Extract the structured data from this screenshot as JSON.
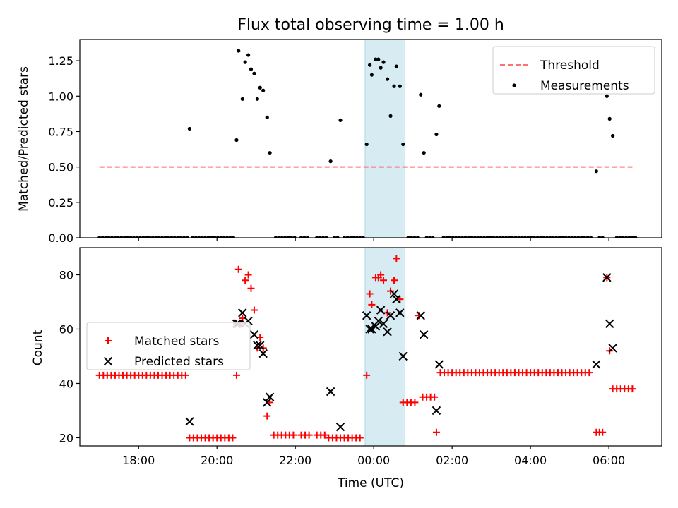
{
  "figure": {
    "title": "Flux total observing time = 1.00 h",
    "xlabel": "Time (UTC)"
  },
  "chart_data": [
    {
      "type": "scatter",
      "ylabel": "Matched/Predicted stars",
      "ylim": [
        0,
        1.4
      ],
      "yticks": [
        "0.00",
        "0.25",
        "0.50",
        "0.75",
        "1.00",
        "1.25"
      ],
      "xticks": [
        "18:00",
        "20:00",
        "22:00",
        "00:00",
        "02:00",
        "04:00",
        "06:00"
      ],
      "xlim_hours": [
        16.5,
        31.35
      ],
      "shaded_x_hours": [
        23.78,
        24.8
      ],
      "legend_position": "top-right",
      "series": [
        {
          "name": "Threshold",
          "kind": "line",
          "color": "#ff7070",
          "x_hours": [
            17.0,
            30.6
          ],
          "y": [
            0.5,
            0.5
          ]
        },
        {
          "name": "Measurements",
          "kind": "scatter",
          "color": "#000000",
          "points": [
            [
              19.3,
              0.77
            ],
            [
              20.5,
              0.69
            ],
            [
              20.55,
              1.32
            ],
            [
              20.65,
              0.98
            ],
            [
              20.72,
              1.24
            ],
            [
              20.8,
              1.29
            ],
            [
              20.87,
              1.19
            ],
            [
              20.95,
              1.16
            ],
            [
              21.03,
              0.98
            ],
            [
              21.1,
              1.06
            ],
            [
              21.18,
              1.04
            ],
            [
              21.28,
              0.85
            ],
            [
              21.35,
              0.6
            ],
            [
              22.9,
              0.54
            ],
            [
              23.15,
              0.83
            ],
            [
              23.82,
              0.66
            ],
            [
              23.9,
              1.22
            ],
            [
              23.95,
              1.15
            ],
            [
              24.05,
              1.26
            ],
            [
              24.12,
              1.26
            ],
            [
              24.18,
              1.2
            ],
            [
              24.25,
              1.24
            ],
            [
              24.35,
              1.12
            ],
            [
              24.43,
              0.86
            ],
            [
              24.52,
              1.07
            ],
            [
              24.58,
              1.21
            ],
            [
              24.67,
              1.07
            ],
            [
              24.75,
              0.66
            ],
            [
              25.2,
              1.01
            ],
            [
              25.28,
              0.6
            ],
            [
              25.6,
              0.73
            ],
            [
              25.67,
              0.93
            ],
            [
              29.68,
              0.47
            ],
            [
              29.95,
              1.0
            ],
            [
              30.02,
              0.84
            ],
            [
              30.1,
              0.72
            ]
          ],
          "zero_points_x_hours": [
            17.0,
            17.08,
            17.16,
            17.24,
            17.32,
            17.4,
            17.48,
            17.56,
            17.64,
            17.72,
            17.8,
            17.88,
            17.96,
            18.04,
            18.12,
            18.2,
            18.28,
            18.36,
            18.44,
            18.52,
            18.6,
            18.68,
            18.76,
            18.84,
            18.92,
            19.0,
            19.08,
            19.16,
            19.24,
            19.38,
            19.46,
            19.54,
            19.62,
            19.7,
            19.78,
            19.86,
            19.94,
            20.02,
            20.1,
            20.18,
            20.26,
            20.34,
            20.42,
            21.5,
            21.58,
            21.66,
            21.74,
            21.82,
            21.9,
            21.98,
            22.15,
            22.23,
            22.31,
            22.55,
            22.63,
            22.71,
            22.79,
            23.0,
            23.08,
            23.25,
            23.33,
            23.41,
            23.49,
            23.57,
            23.65,
            23.73,
            24.88,
            24.96,
            25.04,
            25.12,
            25.35,
            25.43,
            25.51,
            25.78,
            25.86,
            25.94,
            26.02,
            26.1,
            26.18,
            26.26,
            26.34,
            26.42,
            26.5,
            26.58,
            26.66,
            26.74,
            26.82,
            26.9,
            26.98,
            27.06,
            27.14,
            27.22,
            27.3,
            27.38,
            27.46,
            27.54,
            27.62,
            27.7,
            27.78,
            27.86,
            27.94,
            28.02,
            28.1,
            28.18,
            28.26,
            28.34,
            28.42,
            28.5,
            28.58,
            28.66,
            28.74,
            28.82,
            28.9,
            28.98,
            29.06,
            29.14,
            29.22,
            29.3,
            29.38,
            29.46,
            29.54,
            29.76,
            29.84,
            30.2,
            30.28,
            30.36,
            30.44,
            30.52,
            30.6,
            30.68
          ]
        }
      ]
    },
    {
      "type": "scatter",
      "ylabel": "Count",
      "ylim": [
        17,
        90
      ],
      "yticks": [
        "20",
        "40",
        "60",
        "80"
      ],
      "xticks": [
        "18:00",
        "20:00",
        "22:00",
        "00:00",
        "02:00",
        "04:00",
        "06:00"
      ],
      "xlim_hours": [
        16.5,
        31.35
      ],
      "shaded_x_hours": [
        23.78,
        24.8
      ],
      "legend_position": "center-left",
      "series": [
        {
          "name": "Matched stars",
          "kind": "plus",
          "color": "#ff0000",
          "points": [
            [
              17.0,
              43
            ],
            [
              17.1,
              43
            ],
            [
              17.2,
              43
            ],
            [
              17.3,
              43
            ],
            [
              17.4,
              43
            ],
            [
              17.5,
              43
            ],
            [
              17.6,
              43
            ],
            [
              17.7,
              43
            ],
            [
              17.8,
              43
            ],
            [
              17.9,
              43
            ],
            [
              18.0,
              43
            ],
            [
              18.1,
              43
            ],
            [
              18.2,
              43
            ],
            [
              18.3,
              43
            ],
            [
              18.4,
              43
            ],
            [
              18.5,
              43
            ],
            [
              18.6,
              43
            ],
            [
              18.7,
              43
            ],
            [
              18.8,
              43
            ],
            [
              18.9,
              43
            ],
            [
              19.0,
              43
            ],
            [
              19.1,
              43
            ],
            [
              19.2,
              43
            ],
            [
              19.3,
              20
            ],
            [
              19.4,
              20
            ],
            [
              19.5,
              20
            ],
            [
              19.6,
              20
            ],
            [
              19.7,
              20
            ],
            [
              19.8,
              20
            ],
            [
              19.9,
              20
            ],
            [
              20.0,
              20
            ],
            [
              20.1,
              20
            ],
            [
              20.2,
              20
            ],
            [
              20.3,
              20
            ],
            [
              20.4,
              20
            ],
            [
              20.5,
              43
            ],
            [
              20.5,
              62
            ],
            [
              20.55,
              82
            ],
            [
              20.6,
              62
            ],
            [
              20.65,
              64
            ],
            [
              20.72,
              78
            ],
            [
              20.8,
              80
            ],
            [
              20.87,
              75
            ],
            [
              20.95,
              67
            ],
            [
              21.03,
              53
            ],
            [
              21.1,
              57
            ],
            [
              21.18,
              53
            ],
            [
              21.28,
              28
            ],
            [
              21.35,
              33
            ],
            [
              21.45,
              21
            ],
            [
              21.55,
              21
            ],
            [
              21.65,
              21
            ],
            [
              21.75,
              21
            ],
            [
              21.85,
              21
            ],
            [
              21.95,
              21
            ],
            [
              22.15,
              21
            ],
            [
              22.25,
              21
            ],
            [
              22.35,
              21
            ],
            [
              22.55,
              21
            ],
            [
              22.65,
              21
            ],
            [
              22.75,
              21
            ],
            [
              22.85,
              20
            ],
            [
              22.95,
              20
            ],
            [
              23.05,
              20
            ],
            [
              23.15,
              20
            ],
            [
              23.25,
              20
            ],
            [
              23.35,
              20
            ],
            [
              23.45,
              20
            ],
            [
              23.55,
              20
            ],
            [
              23.65,
              20
            ],
            [
              23.82,
              43
            ],
            [
              23.9,
              73
            ],
            [
              23.95,
              69
            ],
            [
              24.05,
              79
            ],
            [
              24.12,
              79
            ],
            [
              24.18,
              80
            ],
            [
              24.25,
              78
            ],
            [
              24.35,
              66
            ],
            [
              24.43,
              74
            ],
            [
              24.52,
              78
            ],
            [
              24.58,
              86
            ],
            [
              24.67,
              71
            ],
            [
              24.75,
              33
            ],
            [
              24.85,
              33
            ],
            [
              24.95,
              33
            ],
            [
              25.05,
              33
            ],
            [
              25.15,
              65
            ],
            [
              25.25,
              35
            ],
            [
              25.35,
              35
            ],
            [
              25.45,
              35
            ],
            [
              25.55,
              35
            ],
            [
              25.6,
              22
            ],
            [
              25.7,
              44
            ],
            [
              25.8,
              44
            ],
            [
              25.9,
              44
            ],
            [
              26.0,
              44
            ],
            [
              26.1,
              44
            ],
            [
              26.2,
              44
            ],
            [
              26.3,
              44
            ],
            [
              26.4,
              44
            ],
            [
              26.5,
              44
            ],
            [
              26.6,
              44
            ],
            [
              26.7,
              44
            ],
            [
              26.8,
              44
            ],
            [
              26.9,
              44
            ],
            [
              27.0,
              44
            ],
            [
              27.1,
              44
            ],
            [
              27.2,
              44
            ],
            [
              27.3,
              44
            ],
            [
              27.4,
              44
            ],
            [
              27.5,
              44
            ],
            [
              27.6,
              44
            ],
            [
              27.7,
              44
            ],
            [
              27.8,
              44
            ],
            [
              27.9,
              44
            ],
            [
              28.0,
              44
            ],
            [
              28.1,
              44
            ],
            [
              28.2,
              44
            ],
            [
              28.3,
              44
            ],
            [
              28.4,
              44
            ],
            [
              28.5,
              44
            ],
            [
              28.6,
              44
            ],
            [
              28.7,
              44
            ],
            [
              28.8,
              44
            ],
            [
              28.9,
              44
            ],
            [
              29.0,
              44
            ],
            [
              29.1,
              44
            ],
            [
              29.2,
              44
            ],
            [
              29.3,
              44
            ],
            [
              29.4,
              44
            ],
            [
              29.5,
              44
            ],
            [
              29.68,
              22
            ],
            [
              29.76,
              22
            ],
            [
              29.84,
              22
            ],
            [
              29.95,
              79
            ],
            [
              30.02,
              52
            ],
            [
              30.1,
              38
            ],
            [
              30.2,
              38
            ],
            [
              30.3,
              38
            ],
            [
              30.4,
              38
            ],
            [
              30.5,
              38
            ],
            [
              30.6,
              38
            ]
          ]
        },
        {
          "name": "Predicted stars",
          "kind": "cross",
          "color": "#000000",
          "points": [
            [
              19.3,
              26
            ],
            [
              20.5,
              62
            ],
            [
              20.55,
              62
            ],
            [
              20.65,
              66
            ],
            [
              20.72,
              62
            ],
            [
              20.8,
              63
            ],
            [
              20.95,
              58
            ],
            [
              21.03,
              54
            ],
            [
              21.1,
              54
            ],
            [
              21.18,
              51
            ],
            [
              21.28,
              33
            ],
            [
              21.35,
              35
            ],
            [
              22.9,
              37
            ],
            [
              23.15,
              24
            ],
            [
              23.82,
              65
            ],
            [
              23.9,
              60
            ],
            [
              23.95,
              60
            ],
            [
              24.05,
              61
            ],
            [
              24.12,
              63
            ],
            [
              24.18,
              67
            ],
            [
              24.25,
              62
            ],
            [
              24.35,
              59
            ],
            [
              24.43,
              65
            ],
            [
              24.52,
              73
            ],
            [
              24.58,
              71
            ],
            [
              24.67,
              66
            ],
            [
              24.75,
              50
            ],
            [
              25.2,
              65
            ],
            [
              25.28,
              58
            ],
            [
              25.6,
              30
            ],
            [
              25.67,
              47
            ],
            [
              29.68,
              47
            ],
            [
              29.95,
              79
            ],
            [
              30.02,
              62
            ],
            [
              30.1,
              53
            ]
          ]
        }
      ]
    }
  ]
}
